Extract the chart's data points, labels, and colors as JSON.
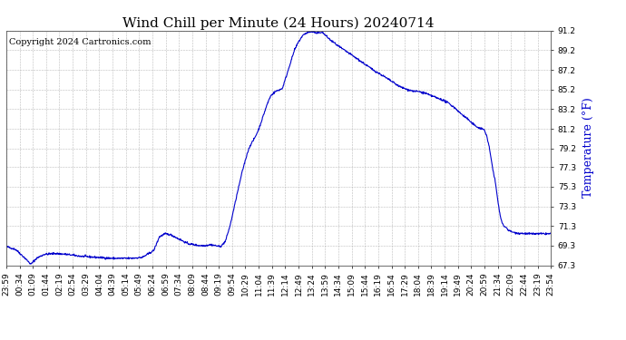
{
  "title": "Wind Chill per Minute (24 Hours) 20240714",
  "ylabel": "Temperature (°F)",
  "copyright_text": "Copyright 2024 Cartronics.com",
  "line_color": "#0000cc",
  "background_color": "#ffffff",
  "grid_color": "#aaaaaa",
  "ylabel_color": "#0000cc",
  "ylim": [
    67.3,
    91.2
  ],
  "yticks": [
    67.3,
    69.3,
    71.3,
    73.3,
    75.3,
    77.3,
    79.2,
    81.2,
    83.2,
    85.2,
    87.2,
    89.2,
    91.2
  ],
  "x_tick_labels": [
    "23:59",
    "00:34",
    "01:09",
    "01:44",
    "02:19",
    "02:54",
    "03:29",
    "04:04",
    "04:39",
    "05:14",
    "05:49",
    "06:24",
    "06:59",
    "07:34",
    "08:09",
    "08:44",
    "09:19",
    "09:54",
    "10:29",
    "11:04",
    "11:39",
    "12:14",
    "12:49",
    "13:24",
    "13:59",
    "14:34",
    "15:09",
    "15:44",
    "16:19",
    "16:54",
    "17:29",
    "18:04",
    "18:39",
    "19:14",
    "19:49",
    "20:24",
    "20:59",
    "21:34",
    "22:09",
    "22:44",
    "23:19",
    "23:54"
  ],
  "title_fontsize": 11,
  "tick_fontsize": 6.5,
  "ylabel_fontsize": 9,
  "copyright_fontsize": 7,
  "line_width": 0.8,
  "keypoints": [
    [
      0,
      69.2
    ],
    [
      25,
      68.9
    ],
    [
      50,
      68.0
    ],
    [
      65,
      67.4
    ],
    [
      80,
      68.0
    ],
    [
      100,
      68.4
    ],
    [
      130,
      68.5
    ],
    [
      160,
      68.4
    ],
    [
      200,
      68.2
    ],
    [
      240,
      68.1
    ],
    [
      280,
      68.0
    ],
    [
      310,
      68.0
    ],
    [
      330,
      68.0
    ],
    [
      360,
      68.1
    ],
    [
      390,
      68.8
    ],
    [
      405,
      70.2
    ],
    [
      420,
      70.5
    ],
    [
      435,
      70.4
    ],
    [
      450,
      70.1
    ],
    [
      465,
      69.8
    ],
    [
      480,
      69.5
    ],
    [
      495,
      69.4
    ],
    [
      510,
      69.3
    ],
    [
      525,
      69.3
    ],
    [
      540,
      69.4
    ],
    [
      553,
      69.3
    ],
    [
      563,
      69.2
    ],
    [
      570,
      69.3
    ],
    [
      580,
      69.8
    ],
    [
      593,
      71.5
    ],
    [
      610,
      74.5
    ],
    [
      625,
      77.0
    ],
    [
      638,
      78.8
    ],
    [
      645,
      79.5
    ],
    [
      653,
      80.0
    ],
    [
      660,
      80.5
    ],
    [
      668,
      81.2
    ],
    [
      675,
      82.0
    ],
    [
      682,
      82.8
    ],
    [
      688,
      83.5
    ],
    [
      695,
      84.2
    ],
    [
      700,
      84.6
    ],
    [
      706,
      84.8
    ],
    [
      712,
      85.0
    ],
    [
      718,
      85.1
    ],
    [
      724,
      85.2
    ],
    [
      730,
      85.3
    ],
    [
      740,
      86.5
    ],
    [
      752,
      88.0
    ],
    [
      762,
      89.2
    ],
    [
      772,
      90.0
    ],
    [
      782,
      90.6
    ],
    [
      790,
      90.9
    ],
    [
      798,
      91.0
    ],
    [
      808,
      91.1
    ],
    [
      815,
      91.05
    ],
    [
      820,
      90.9
    ],
    [
      828,
      91.0
    ],
    [
      835,
      91.05
    ],
    [
      842,
      90.8
    ],
    [
      850,
      90.5
    ],
    [
      858,
      90.2
    ],
    [
      866,
      90.0
    ],
    [
      875,
      89.7
    ],
    [
      890,
      89.3
    ],
    [
      910,
      88.8
    ],
    [
      940,
      88.0
    ],
    [
      970,
      87.2
    ],
    [
      1000,
      86.5
    ],
    [
      1020,
      86.0
    ],
    [
      1040,
      85.5
    ],
    [
      1060,
      85.2
    ],
    [
      1080,
      85.0
    ],
    [
      1090,
      85.0
    ],
    [
      1100,
      84.9
    ],
    [
      1110,
      84.8
    ],
    [
      1120,
      84.6
    ],
    [
      1130,
      84.5
    ],
    [
      1140,
      84.3
    ],
    [
      1150,
      84.2
    ],
    [
      1160,
      84.0
    ],
    [
      1170,
      83.8
    ],
    [
      1180,
      83.5
    ],
    [
      1190,
      83.2
    ],
    [
      1200,
      82.8
    ],
    [
      1210,
      82.5
    ],
    [
      1220,
      82.2
    ],
    [
      1230,
      81.8
    ],
    [
      1240,
      81.5
    ],
    [
      1250,
      81.3
    ],
    [
      1258,
      81.2
    ],
    [
      1264,
      81.1
    ],
    [
      1270,
      80.5
    ],
    [
      1276,
      79.5
    ],
    [
      1282,
      78.2
    ],
    [
      1287,
      77.0
    ],
    [
      1292,
      76.0
    ],
    [
      1296,
      75.0
    ],
    [
      1300,
      73.8
    ],
    [
      1304,
      72.8
    ],
    [
      1308,
      72.0
    ],
    [
      1312,
      71.5
    ],
    [
      1316,
      71.3
    ],
    [
      1320,
      71.2
    ],
    [
      1330,
      70.8
    ],
    [
      1345,
      70.6
    ],
    [
      1360,
      70.55
    ],
    [
      1380,
      70.5
    ],
    [
      1400,
      70.5
    ],
    [
      1420,
      70.5
    ],
    [
      1440,
      70.5
    ]
  ]
}
